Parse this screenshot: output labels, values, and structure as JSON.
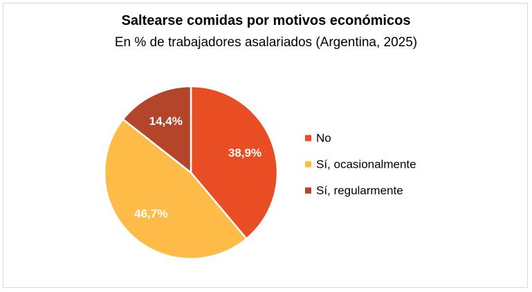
{
  "chart_data": {
    "type": "pie",
    "title": "Saltearse comidas por motivos económicos",
    "subtitle": "En % de trabajadores asalariados (Argentina, 2025)",
    "slices": [
      {
        "label": "No",
        "value": 38.9,
        "display": "38,9%",
        "color": "#e84d24"
      },
      {
        "label": "Sí, ocasionalmente",
        "value": 46.7,
        "display": "46,7%",
        "color": "#ffbb47"
      },
      {
        "label": "Sí, regularmente",
        "value": 14.4,
        "display": "14,4%",
        "color": "#b4452a"
      }
    ],
    "legend_position": "right"
  }
}
